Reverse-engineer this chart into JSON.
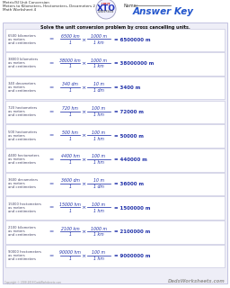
{
  "title_line1": "Metric/SI Unit Conversion",
  "title_line2": "Meters to Kilometers, Hectometers, Decameters 2",
  "title_line3": "Math Worksheet 4",
  "answer_key": "Answer Key",
  "name_label": "Name:",
  "instruction": "Solve the unit conversion problem by cross cancelling units.",
  "problems": [
    {
      "label_line1": "6500 kilometers",
      "label_line2": "as meters",
      "label_line3": "and centimeters",
      "num1": "6500 km",
      "den1": "1",
      "num2": "1000 m",
      "den2": "1 km",
      "result": "= 6500000 m"
    },
    {
      "label_line1": "38000 kilometers",
      "label_line2": "as meters",
      "label_line3": "and centimeters",
      "num1": "38000 km",
      "den1": "1",
      "num2": "1000 m",
      "den2": "1 km",
      "result": "= 38000000 m"
    },
    {
      "label_line1": "340 decameters",
      "label_line2": "as meters",
      "label_line3": "and centimeters",
      "num1": "340 dm",
      "den1": "1",
      "num2": "10 m",
      "den2": "1 dm",
      "result": "= 3400 m"
    },
    {
      "label_line1": "720 hectometers",
      "label_line2": "as meters",
      "label_line3": "and centimeters",
      "num1": "720 hm",
      "den1": "1",
      "num2": "100 m",
      "den2": "1 hm",
      "result": "= 72000 m"
    },
    {
      "label_line1": "500 hectometers",
      "label_line2": "as meters",
      "label_line3": "and centimeters",
      "num1": "500 hm",
      "den1": "1",
      "num2": "100 m",
      "den2": "1 hm",
      "result": "= 50000 m"
    },
    {
      "label_line1": "4400 hectometers",
      "label_line2": "as meters",
      "label_line3": "and centimeters",
      "num1": "4400 hm",
      "den1": "1",
      "num2": "100 m",
      "den2": "1 hm",
      "result": "= 440000 m"
    },
    {
      "label_line1": "3600 decameters",
      "label_line2": "as meters",
      "label_line3": "and centimeters",
      "num1": "3600 dm",
      "den1": "1",
      "num2": "10 m",
      "den2": "1 dm",
      "result": "= 36000 m"
    },
    {
      "label_line1": "15000 hectometers",
      "label_line2": "as meters",
      "label_line3": "and centimeters",
      "num1": "15000 hm",
      "den1": "1",
      "num2": "100 m",
      "den2": "1 hm",
      "result": "= 1500000 m"
    },
    {
      "label_line1": "2100 kilometers",
      "label_line2": "as meters",
      "label_line3": "and centimeters",
      "num1": "2100 km",
      "den1": "1",
      "num2": "1000 m",
      "den2": "1 km",
      "result": "= 2100000 m"
    },
    {
      "label_line1": "90000 hectometers",
      "label_line2": "as meters",
      "label_line3": "and centimeters",
      "num1": "90000 hm",
      "den1": "1",
      "num2": "100 m",
      "den2": "1 hm",
      "result": "= 9000000 m"
    }
  ],
  "footer": "Copyright © 2008-2018 DadsWorksheets.com",
  "watermark": "DadsWorksheets.com"
}
